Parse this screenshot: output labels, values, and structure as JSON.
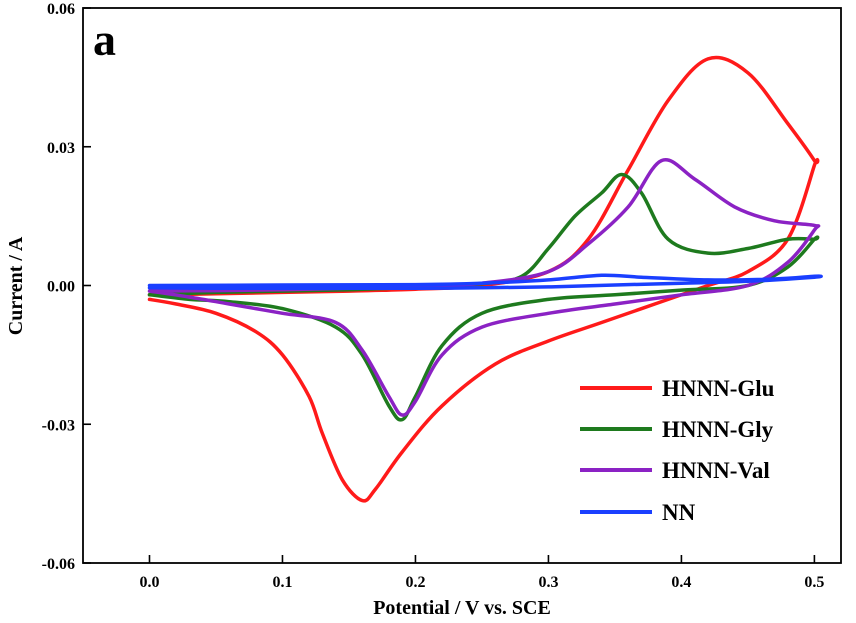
{
  "chart_data": {
    "type": "line",
    "panel_label": "a",
    "xlabel": "Potential / V vs. SCE",
    "ylabel": "Current / A",
    "xlim": [
      -0.05,
      0.52
    ],
    "ylim": [
      -0.06,
      0.06
    ],
    "xticks": [
      0.0,
      0.1,
      0.2,
      0.3,
      0.4,
      0.5
    ],
    "xtick_labels": [
      "0.0",
      "0.1",
      "0.2",
      "0.3",
      "0.4",
      "0.5"
    ],
    "yticks": [
      -0.06,
      -0.03,
      0.0,
      0.03,
      0.06
    ],
    "ytick_labels": [
      "-0.06",
      "-0.03",
      "0.00",
      "0.03",
      "0.06"
    ],
    "grid": false,
    "legend_position": "bottom-right",
    "series": [
      {
        "name": "HNNN-Glu",
        "color": "#ff1a1a",
        "x": [
          0.0,
          0.05,
          0.1,
          0.15,
          0.2,
          0.25,
          0.3,
          0.33,
          0.36,
          0.39,
          0.42,
          0.45,
          0.48,
          0.5,
          0.5,
          0.48,
          0.45,
          0.42,
          0.38,
          0.34,
          0.3,
          0.26,
          0.22,
          0.19,
          0.17,
          0.16,
          0.145,
          0.13,
          0.12,
          0.1,
          0.08,
          0.05,
          0.02,
          0.0
        ],
        "y": [
          -0.002,
          -0.0018,
          -0.0015,
          -0.0012,
          -0.0008,
          0.0,
          0.003,
          0.01,
          0.025,
          0.04,
          0.049,
          0.046,
          0.035,
          0.027,
          0.026,
          0.01,
          0.003,
          0.0,
          -0.004,
          -0.008,
          -0.012,
          -0.017,
          -0.026,
          -0.036,
          -0.044,
          -0.0465,
          -0.042,
          -0.032,
          -0.024,
          -0.015,
          -0.01,
          -0.006,
          -0.004,
          -0.003
        ]
      },
      {
        "name": "HNNN-Gly",
        "color": "#1e7a1e",
        "x": [
          0.0,
          0.05,
          0.1,
          0.15,
          0.2,
          0.25,
          0.28,
          0.3,
          0.32,
          0.34,
          0.355,
          0.37,
          0.39,
          0.42,
          0.45,
          0.48,
          0.5,
          0.5,
          0.48,
          0.45,
          0.4,
          0.35,
          0.3,
          0.25,
          0.22,
          0.2,
          0.19,
          0.18,
          0.16,
          0.14,
          0.1,
          0.06,
          0.03,
          0.0
        ],
        "y": [
          -0.002,
          -0.0015,
          -0.0012,
          -0.0009,
          -0.0004,
          0.0004,
          0.002,
          0.008,
          0.015,
          0.02,
          0.024,
          0.02,
          0.01,
          0.007,
          0.008,
          0.01,
          0.01,
          0.01,
          0.004,
          0.0,
          -0.001,
          -0.002,
          -0.003,
          -0.006,
          -0.013,
          -0.024,
          -0.029,
          -0.026,
          -0.015,
          -0.009,
          -0.005,
          -0.0035,
          -0.003,
          -0.002
        ]
      },
      {
        "name": "HNNN-Val",
        "color": "#8b22c4",
        "x": [
          0.0,
          0.05,
          0.1,
          0.15,
          0.2,
          0.25,
          0.3,
          0.33,
          0.36,
          0.385,
          0.41,
          0.44,
          0.47,
          0.5,
          0.5,
          0.48,
          0.45,
          0.4,
          0.35,
          0.3,
          0.25,
          0.22,
          0.2,
          0.19,
          0.18,
          0.16,
          0.14,
          0.1,
          0.06,
          0.03,
          0.0
        ],
        "y": [
          -0.0012,
          -0.0011,
          -0.0009,
          -0.0006,
          -0.0002,
          0.0005,
          0.003,
          0.009,
          0.017,
          0.027,
          0.023,
          0.017,
          0.014,
          0.013,
          0.012,
          0.005,
          0.0,
          -0.002,
          -0.004,
          -0.006,
          -0.009,
          -0.015,
          -0.025,
          -0.028,
          -0.024,
          -0.014,
          -0.008,
          -0.006,
          -0.004,
          -0.0025,
          -0.0012
        ]
      },
      {
        "name": "NN",
        "color": "#1a3fff",
        "x": [
          0.0,
          0.1,
          0.2,
          0.25,
          0.3,
          0.34,
          0.37,
          0.42,
          0.47,
          0.5,
          0.5,
          0.45,
          0.4,
          0.35,
          0.3,
          0.25,
          0.2,
          0.15,
          0.1,
          0.05,
          0.0
        ],
        "y": [
          0.0,
          0.0001,
          0.0002,
          0.0005,
          0.0012,
          0.0022,
          0.0018,
          0.0012,
          0.0014,
          0.002,
          0.0018,
          0.0009,
          0.0005,
          0.0001,
          -0.0003,
          -0.0005,
          -0.0006,
          -0.0006,
          -0.0006,
          -0.0006,
          -0.0005
        ]
      }
    ]
  }
}
